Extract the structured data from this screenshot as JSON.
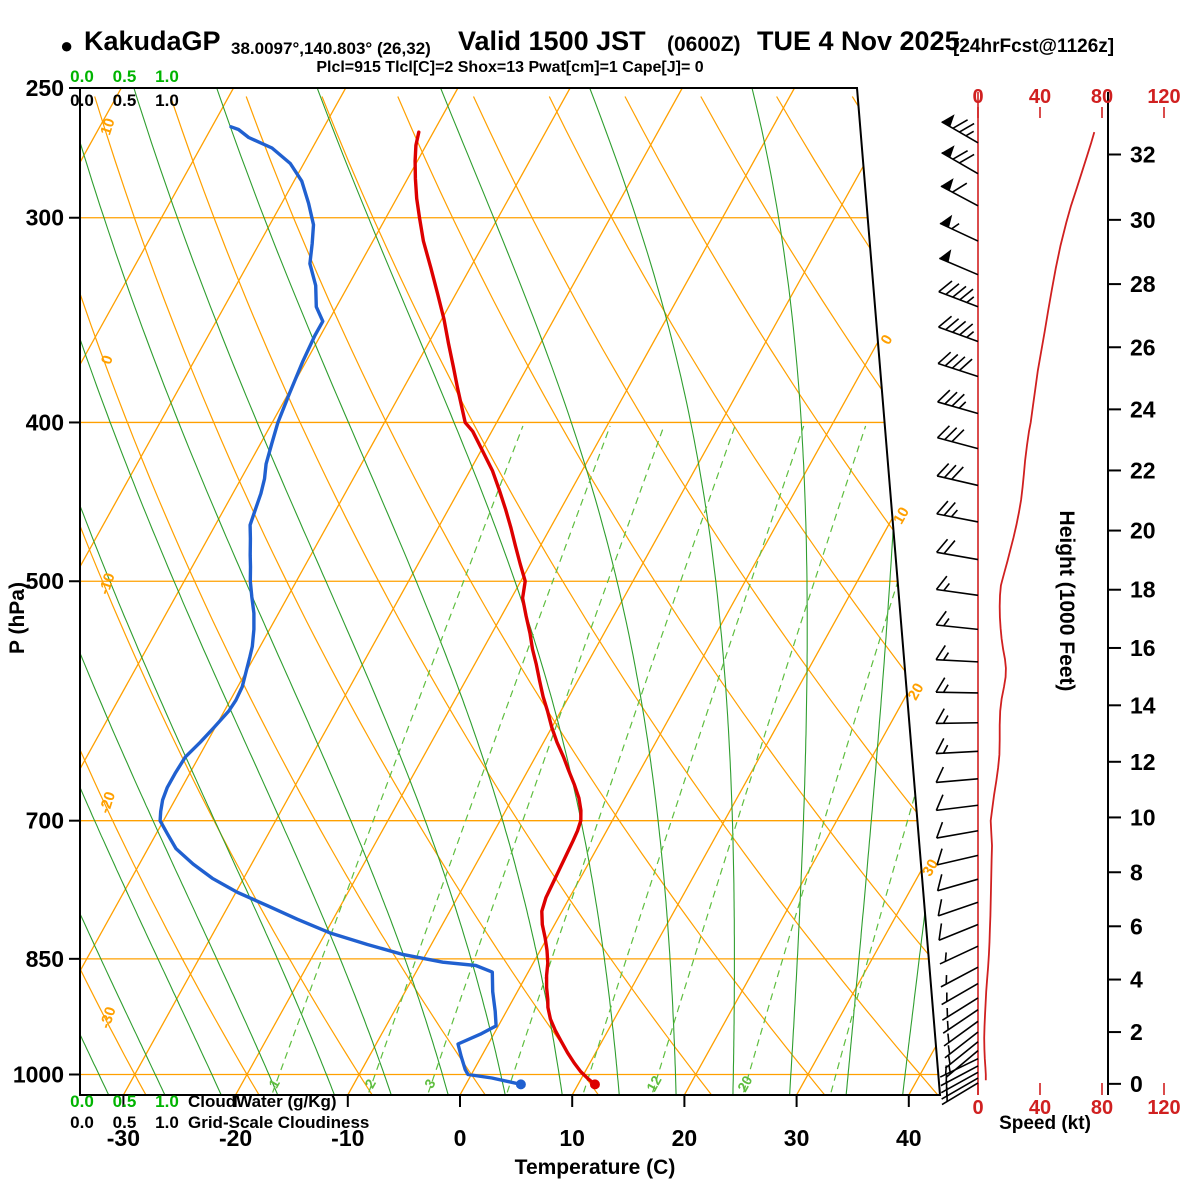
{
  "title": {
    "bullet": "●",
    "station": "KakudaGP",
    "coords": "38.0097°,140.803° (26,32)",
    "valid": "Valid 1500 JST",
    "zulu": "(0600Z)",
    "date": "TUE 4 Nov 2025",
    "forecast": "[24hrFcst@1126z]"
  },
  "params_line": "Plcl=915 Tlcl[C]=2 Shox=13 Pwat[cm]=1 Cape[J]= 0",
  "axes": {
    "pressure_label": "P (hPa)",
    "pressure_ticks": [
      250,
      300,
      400,
      500,
      700,
      850,
      1000
    ],
    "temp_label": "Temperature (C)",
    "temp_ticks": [
      -30,
      -20,
      -10,
      0,
      10,
      20,
      30,
      40
    ],
    "height_label": "Height (1000 Feet)",
    "height_ticks": [
      0,
      2,
      4,
      6,
      8,
      10,
      12,
      14,
      16,
      18,
      20,
      22,
      24,
      26,
      28,
      30,
      32
    ],
    "speed_label": "Speed (kt)",
    "speed_ticks": [
      0,
      40,
      80,
      120
    ]
  },
  "scales": {
    "cloudwater_label": "CloudWater (g/Kg)",
    "cloudiness_label": "Grid-Scale Cloudiness",
    "tick_values": [
      "0.0",
      "0.5",
      "1.0"
    ]
  },
  "grid": {
    "isotherms_c": {
      "min": -90,
      "max": 40,
      "step": 10
    },
    "isotherm_right_labels": [
      0,
      10,
      20,
      30
    ],
    "dry_adiabats_c": {
      "min": -40,
      "max": 130,
      "step": 10
    },
    "dry_adiabat_left_labels": [
      10,
      0,
      -10,
      -20,
      -30
    ],
    "moist_adiabats_c": {
      "min": -30,
      "max": 40,
      "step": 5
    },
    "pressure_lines_hpa": [
      300,
      400,
      500,
      700,
      850,
      1000
    ],
    "mixing_ratio_gkg": [
      1,
      2,
      3,
      5,
      8,
      12,
      20,
      32
    ],
    "mixing_ratio_labeled": [
      1,
      2,
      3,
      12,
      20
    ]
  },
  "chart_data": {
    "type": "line",
    "subtype": "skew-t log-p sounding",
    "pressure_range_hpa": [
      250,
      1030
    ],
    "temperature_profile_c": [
      [
        1014,
        11.5
      ],
      [
        1006,
        10.6
      ],
      [
        996,
        9.6
      ],
      [
        984,
        8.6
      ],
      [
        970,
        7.5
      ],
      [
        955,
        6.4
      ],
      [
        940,
        5.3
      ],
      [
        925,
        4.3
      ],
      [
        910,
        3.5
      ],
      [
        900,
        3.1
      ],
      [
        885,
        2.4
      ],
      [
        870,
        1.8
      ],
      [
        855,
        1.3
      ],
      [
        840,
        0.6
      ],
      [
        825,
        -0.2
      ],
      [
        810,
        -1.1
      ],
      [
        795,
        -1.8
      ],
      [
        780,
        -2.1
      ],
      [
        765,
        -2.2
      ],
      [
        750,
        -2.3
      ],
      [
        735,
        -2.4
      ],
      [
        720,
        -2.5
      ],
      [
        710,
        -2.6
      ],
      [
        700,
        -2.8
      ],
      [
        690,
        -3.3
      ],
      [
        678,
        -4.1
      ],
      [
        665,
        -5.2
      ],
      [
        652,
        -6.4
      ],
      [
        640,
        -7.5
      ],
      [
        627,
        -8.8
      ],
      [
        614,
        -10
      ],
      [
        600,
        -11.2
      ],
      [
        588,
        -12.3
      ],
      [
        575,
        -13.4
      ],
      [
        562,
        -14.5
      ],
      [
        550,
        -15.6
      ],
      [
        538,
        -16.6
      ],
      [
        525,
        -17.8
      ],
      [
        512,
        -19
      ],
      [
        500,
        -19.6
      ],
      [
        488,
        -20.9
      ],
      [
        476,
        -22.2
      ],
      [
        464,
        -23.5
      ],
      [
        452,
        -24.9
      ],
      [
        440,
        -26.4
      ],
      [
        428,
        -28
      ],
      [
        416,
        -29.9
      ],
      [
        405,
        -31.7
      ],
      [
        400,
        -32.8
      ],
      [
        392,
        -33.8
      ],
      [
        381,
        -35.2
      ],
      [
        370,
        -36.6
      ],
      [
        358,
        -38.2
      ],
      [
        346,
        -39.8
      ],
      [
        334,
        -41.6
      ],
      [
        322,
        -43.5
      ],
      [
        310,
        -45.5
      ],
      [
        300,
        -47
      ],
      [
        292,
        -48.2
      ],
      [
        284,
        -49.3
      ],
      [
        277,
        -50.2
      ],
      [
        271,
        -50.9
      ],
      [
        266,
        -51.3
      ]
    ],
    "dewpoint_profile_c": [
      [
        1014,
        4.9
      ],
      [
        1005,
        2
      ],
      [
        1000,
        -0.3
      ],
      [
        993,
        -0.8
      ],
      [
        975,
        -1.8
      ],
      [
        958,
        -2.7
      ],
      [
        945,
        -1.2
      ],
      [
        934,
        -0.2
      ],
      [
        915,
        -1
      ],
      [
        890,
        -2.2
      ],
      [
        866,
        -3.2
      ],
      [
        858,
        -5
      ],
      [
        854,
        -8.1
      ],
      [
        845,
        -12
      ],
      [
        833,
        -15.7
      ],
      [
        820,
        -19.5
      ],
      [
        804,
        -23.2
      ],
      [
        789,
        -26.5
      ],
      [
        774,
        -29.9
      ],
      [
        759,
        -32.8
      ],
      [
        744,
        -35.2
      ],
      [
        728,
        -37.5
      ],
      [
        713,
        -39
      ],
      [
        700,
        -40.3
      ],
      [
        691,
        -40.7
      ],
      [
        680,
        -41.1
      ],
      [
        668,
        -41.3
      ],
      [
        655,
        -41.3
      ],
      [
        640,
        -41.2
      ],
      [
        627,
        -40.6
      ],
      [
        614,
        -40.1
      ],
      [
        600,
        -39.6
      ],
      [
        591,
        -39.5
      ],
      [
        580,
        -39.6
      ],
      [
        568,
        -40
      ],
      [
        556,
        -40.4
      ],
      [
        548,
        -40.7
      ],
      [
        535,
        -41.4
      ],
      [
        523,
        -42.2
      ],
      [
        511,
        -43.2
      ],
      [
        500,
        -44.1
      ],
      [
        490,
        -44.8
      ],
      [
        482,
        -45.4
      ],
      [
        471,
        -46.2
      ],
      [
        462,
        -46.9
      ],
      [
        452,
        -47.2
      ],
      [
        442,
        -47.5
      ],
      [
        433,
        -47.9
      ],
      [
        424,
        -48.5
      ],
      [
        412,
        -49
      ],
      [
        400,
        -49.5
      ],
      [
        384,
        -49.9
      ],
      [
        367,
        -50.3
      ],
      [
        354,
        -50.5
      ],
      [
        347,
        -50.5
      ],
      [
        340,
        -51.8
      ],
      [
        330,
        -52.9
      ],
      [
        320,
        -54.5
      ],
      [
        311,
        -55.3
      ],
      [
        303,
        -56.1
      ],
      [
        294,
        -57.6
      ],
      [
        285,
        -59.3
      ],
      [
        278,
        -61.2
      ],
      [
        272,
        -63.6
      ],
      [
        268,
        -66.2
      ],
      [
        265,
        -67.5
      ],
      [
        264,
        -68.3
      ]
    ],
    "wind_speed_profile_kt": [
      [
        1008,
        5
      ],
      [
        1000,
        5
      ],
      [
        990,
        4.8
      ],
      [
        978,
        4.4
      ],
      [
        965,
        4.1
      ],
      [
        950,
        4
      ],
      [
        935,
        4.2
      ],
      [
        920,
        4.5
      ],
      [
        905,
        4.9
      ],
      [
        890,
        5.3
      ],
      [
        875,
        5.9
      ],
      [
        860,
        6.5
      ],
      [
        845,
        7
      ],
      [
        830,
        7.4
      ],
      [
        815,
        7.7
      ],
      [
        800,
        8
      ],
      [
        785,
        8.2
      ],
      [
        770,
        8.4
      ],
      [
        755,
        8.6
      ],
      [
        740,
        8.8
      ],
      [
        725,
        9
      ],
      [
        712,
        8.6
      ],
      [
        700,
        8.2
      ],
      [
        688,
        9.2
      ],
      [
        675,
        10.4
      ],
      [
        662,
        11.8
      ],
      [
        650,
        13
      ],
      [
        638,
        13.8
      ],
      [
        625,
        14
      ],
      [
        612,
        14
      ],
      [
        600,
        14.3
      ],
      [
        590,
        15.2
      ],
      [
        580,
        16.8
      ],
      [
        572,
        17.8
      ],
      [
        565,
        18
      ],
      [
        558,
        17.4
      ],
      [
        550,
        16.2
      ],
      [
        542,
        15.2
      ],
      [
        534,
        14.6
      ],
      [
        526,
        14.1
      ],
      [
        518,
        14
      ],
      [
        510,
        14.2
      ],
      [
        503,
        14.8
      ],
      [
        500,
        15.5
      ],
      [
        493,
        17.2
      ],
      [
        486,
        19
      ],
      [
        478,
        21
      ],
      [
        470,
        23
      ],
      [
        462,
        24.8
      ],
      [
        454,
        26.4
      ],
      [
        446,
        27.8
      ],
      [
        438,
        28.8
      ],
      [
        430,
        29.6
      ],
      [
        422,
        30.4
      ],
      [
        413,
        31.6
      ],
      [
        405,
        32.9
      ],
      [
        400,
        34
      ],
      [
        391,
        35.4
      ],
      [
        382,
        36.9
      ],
      [
        372,
        38.6
      ],
      [
        362,
        40.8
      ],
      [
        352,
        43
      ],
      [
        342,
        45.2
      ],
      [
        332,
        47.6
      ],
      [
        322,
        50.2
      ],
      [
        312,
        53.2
      ],
      [
        302,
        57
      ],
      [
        295,
        60
      ],
      [
        288,
        63.6
      ],
      [
        281,
        67.2
      ],
      [
        275,
        70.4
      ],
      [
        270,
        73
      ],
      [
        266,
        75
      ]
    ],
    "wind_barbs": [
      [
        270,
        75,
        300
      ],
      [
        282,
        68,
        300
      ],
      [
        295,
        60,
        298
      ],
      [
        310,
        55,
        295
      ],
      [
        325,
        51,
        293
      ],
      [
        340,
        47,
        291
      ],
      [
        357,
        43,
        290
      ],
      [
        375,
        39,
        288
      ],
      [
        395,
        35,
        286
      ],
      [
        415,
        32,
        285
      ],
      [
        437,
        29,
        283
      ],
      [
        460,
        26,
        281
      ],
      [
        485,
        22,
        280
      ],
      [
        510,
        16,
        278
      ],
      [
        535,
        15,
        276
      ],
      [
        560,
        17,
        273
      ],
      [
        585,
        17,
        271
      ],
      [
        610,
        14,
        269
      ],
      [
        635,
        13,
        267
      ],
      [
        660,
        12,
        265
      ],
      [
        685,
        10,
        263
      ],
      [
        710,
        9,
        260
      ],
      [
        735,
        9,
        257
      ],
      [
        760,
        8,
        254
      ],
      [
        785,
        8,
        251
      ],
      [
        810,
        8,
        248
      ],
      [
        835,
        7,
        245
      ],
      [
        860,
        7,
        242
      ],
      [
        880,
        6,
        240
      ],
      [
        898,
        6,
        238
      ],
      [
        913,
        5,
        236
      ],
      [
        928,
        5,
        234
      ],
      [
        942,
        5,
        232
      ],
      [
        955,
        4,
        231
      ],
      [
        967,
        4,
        230
      ],
      [
        978,
        4,
        244
      ],
      [
        988,
        5,
        242
      ],
      [
        997,
        5,
        241
      ],
      [
        1005,
        5,
        240
      ],
      [
        1012,
        5,
        239
      ]
    ]
  },
  "colors": {
    "isotherm": "#FFA000",
    "dry_adiabat": "#FFA000",
    "moist_adiabat": "#2f9e2f",
    "mixing_ratio": "#5fbe3f",
    "temperature": "#dd0000",
    "dewpoint": "#2060d0",
    "wind": "#000000",
    "speed_axis": "#d02020",
    "params": "#bf0066",
    "cloudwater": "#00b400",
    "frame": "#000000"
  }
}
